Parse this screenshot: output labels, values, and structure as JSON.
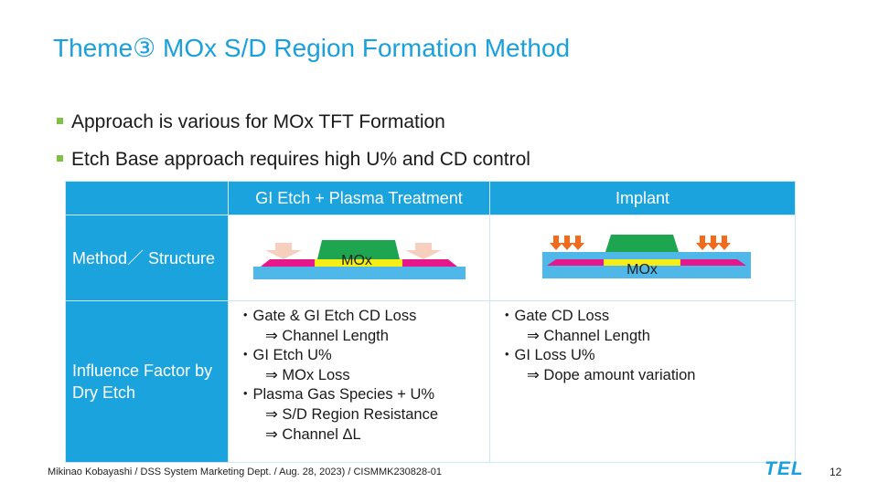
{
  "slide": {
    "title": "Theme③ MOx S/D Region Formation Method",
    "bullets": [
      "Approach is various for MOx TFT Formation",
      "Etch Base approach requires high U% and CD control"
    ]
  },
  "table": {
    "columns": [
      "GI Etch + Plasma Treatment",
      "Implant"
    ],
    "row_labels": {
      "structure": "Method／ Structure",
      "influence": "Influence Factor by Dry Etch"
    },
    "diagram_labels": {
      "gi_etch": "MOx",
      "implant": "MOx"
    },
    "influence": {
      "gi_etch": [
        "・Gate & GI Etch CD Loss",
        "⇒ Channel Length",
        "・GI Etch U%",
        "⇒ MOx Loss",
        "・Plasma Gas Species + U%",
        "⇒ S/D Region Resistance",
        "⇒ Channel ΔL"
      ],
      "implant": [
        "・Gate CD Loss",
        "⇒ Channel Length",
        "・GI Loss U%",
        "⇒ Dope amount variation"
      ]
    }
  },
  "colors": {
    "accent": "#1aa0dc",
    "bullet": "#7dc242",
    "substrate": "#4fb8e8",
    "mox_layer": "#e6178a",
    "mox_channel": "#f4ee16",
    "gate": "#1ea550",
    "plasma_arrow": "#f7cfbf",
    "implant_arrow": "#f26a1b"
  },
  "footer": {
    "text": "Mikinao Kobayashi / DSS System Marketing Dept. / Aug. 28, 2023) / CISMMK230828-01",
    "logo": "TEL",
    "page": "12"
  }
}
